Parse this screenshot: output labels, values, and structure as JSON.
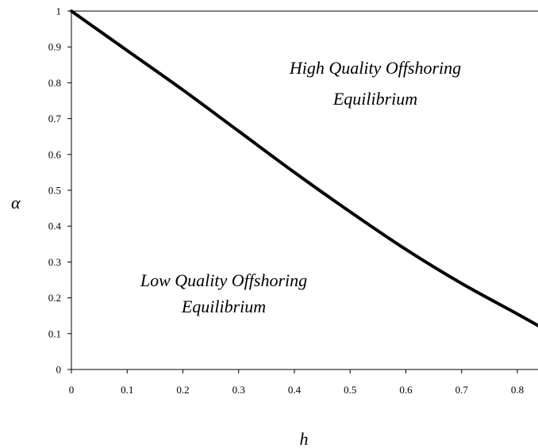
{
  "chart_data": {
    "type": "line",
    "title": "",
    "xlabel": "h",
    "ylabel": "α",
    "xlim": [
      0,
      0.84
    ],
    "ylim": [
      0,
      1
    ],
    "grid": false,
    "x_ticks": [
      "0",
      "0.1",
      "0.2",
      "0.3",
      "0.4",
      "0.5",
      "0.6",
      "0.7",
      "0.8"
    ],
    "y_ticks": [
      "0",
      "0.1",
      "0.2",
      "0.3",
      "0.4",
      "0.5",
      "0.6",
      "0.7",
      "0.8",
      "0.9",
      "1"
    ],
    "series": [
      {
        "x": [
          0,
          0.1,
          0.2,
          0.3,
          0.4,
          0.5,
          0.6,
          0.7,
          0.8,
          0.84
        ],
        "y": [
          1.0,
          0.89,
          0.78,
          0.665,
          0.55,
          0.44,
          0.335,
          0.24,
          0.155,
          0.12
        ]
      }
    ],
    "annotations": [
      {
        "lines": [
          "High Quality Offshoring",
          "Equilibrium"
        ]
      },
      {
        "lines": [
          "Low Quality Offshoring",
          "Equilibrium"
        ]
      }
    ]
  }
}
